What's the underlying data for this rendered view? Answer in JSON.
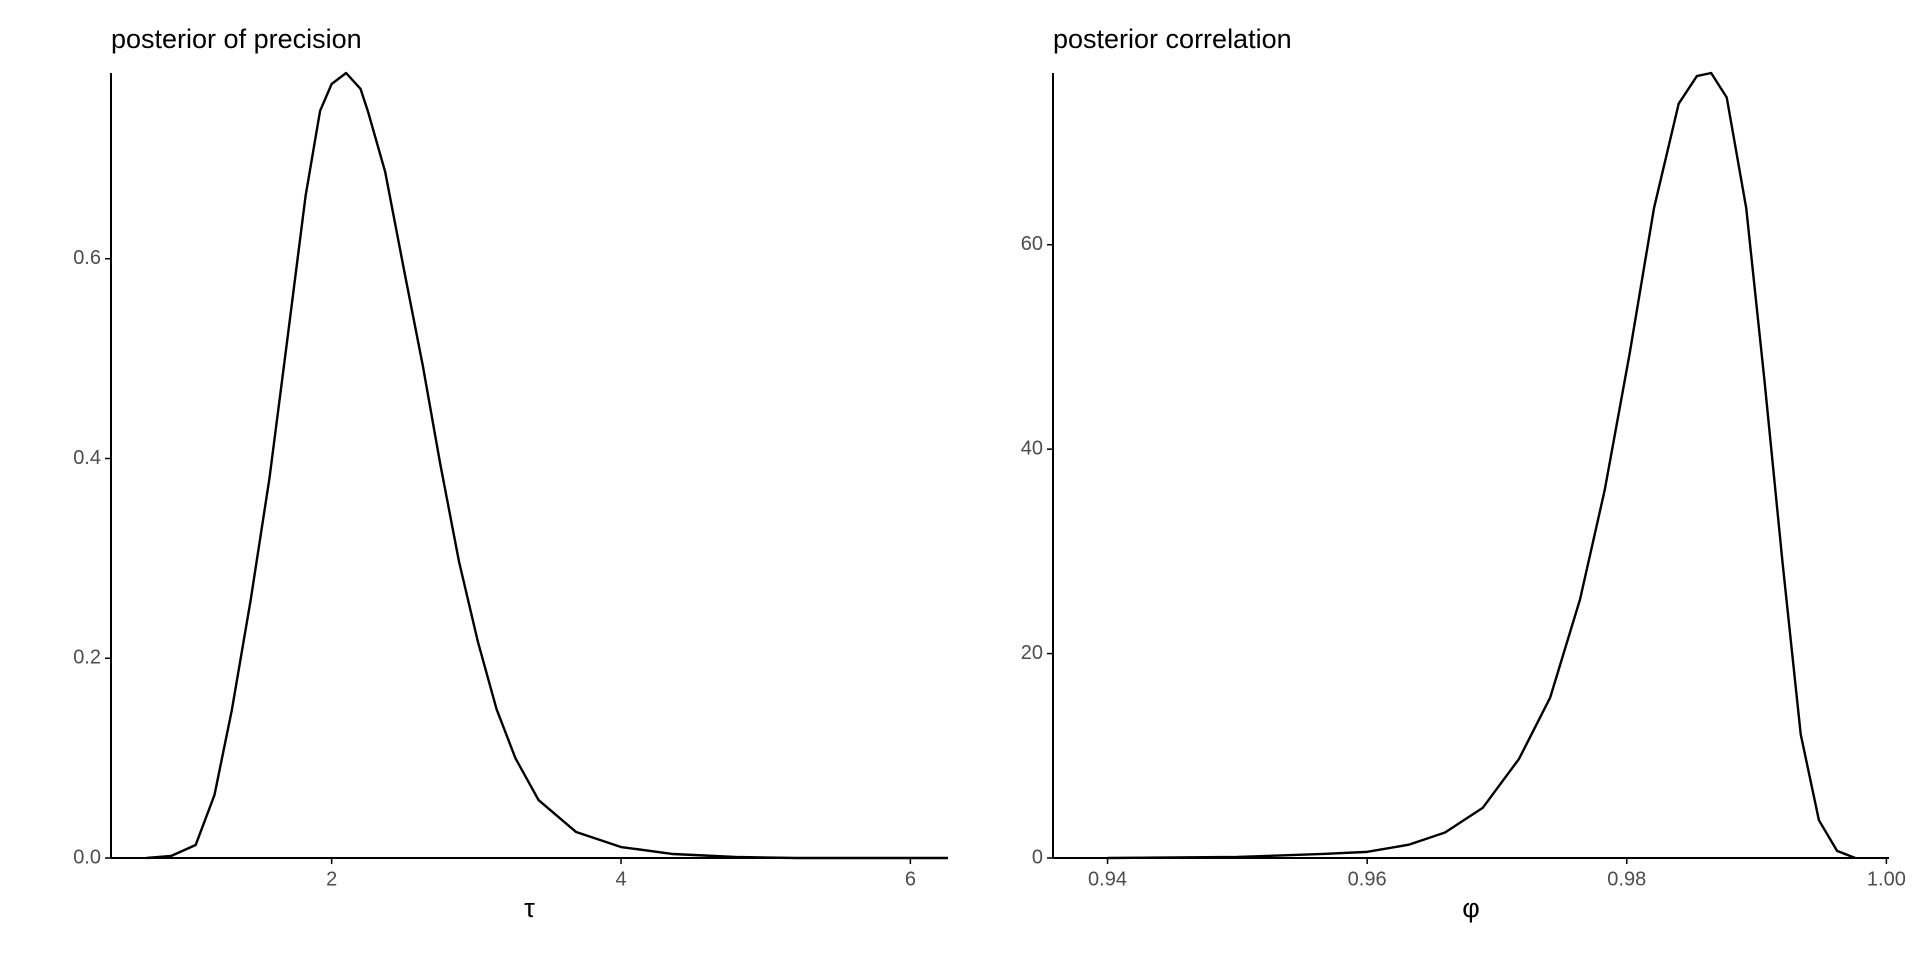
{
  "chart_data": [
    {
      "type": "line",
      "title": "posterior of precision",
      "x_label": "τ",
      "color": "#000000",
      "x": [
        0.72,
        0.89,
        1.06,
        1.19,
        1.31,
        1.44,
        1.57,
        1.69,
        1.82,
        1.92,
        2.0,
        2.1,
        2.2,
        2.25,
        2.37,
        2.5,
        2.63,
        2.75,
        2.88,
        3.01,
        3.14,
        3.27,
        3.43,
        3.69,
        4.0,
        4.36,
        4.79,
        5.21,
        6.0,
        6.26
      ],
      "values": [
        0,
        0.002,
        0.013,
        0.063,
        0.148,
        0.258,
        0.38,
        0.515,
        0.663,
        0.748,
        0.775,
        0.786,
        0.77,
        0.748,
        0.687,
        0.589,
        0.493,
        0.395,
        0.297,
        0.217,
        0.149,
        0.1,
        0.058,
        0.026,
        0.011,
        0.004,
        0.001,
        0,
        0,
        0
      ],
      "xlim": [
        0.475,
        6.26
      ],
      "ylim": [
        0,
        0.786
      ],
      "xticks": [
        2,
        4,
        6
      ],
      "yticks": [
        {
          "value": 0,
          "label": "0.0"
        },
        0.2,
        0.4,
        0.6
      ]
    },
    {
      "type": "line",
      "title": "posterior correlation",
      "x_label": "φ",
      "color": "#000000",
      "x": [
        0.94,
        0.95,
        0.9566,
        0.96,
        0.9632,
        0.966,
        0.9689,
        0.9717,
        0.9741,
        0.9764,
        0.9783,
        0.9802,
        0.9821,
        0.984,
        0.9854,
        0.9865,
        0.9877,
        0.9892,
        0.9906,
        0.992,
        0.9934,
        0.9948,
        0.9962,
        0.9976
      ],
      "values": [
        0,
        0.1,
        0.4,
        0.6,
        1.3,
        2.5,
        4.9,
        9.7,
        15.7,
        25.3,
        36.0,
        49.2,
        63.6,
        73.8,
        76.5,
        76.8,
        74.4,
        63.6,
        46.8,
        28.9,
        12.1,
        3.7,
        0.7,
        0
      ],
      "xlim": [
        0.9358,
        1.0002
      ],
      "ylim": [
        0,
        76.8
      ],
      "xticks": [
        0.94,
        0.96,
        0.98,
        {
          "value": 1.0,
          "label": "1.00"
        }
      ],
      "yticks": [
        0,
        20,
        40,
        60
      ]
    }
  ]
}
